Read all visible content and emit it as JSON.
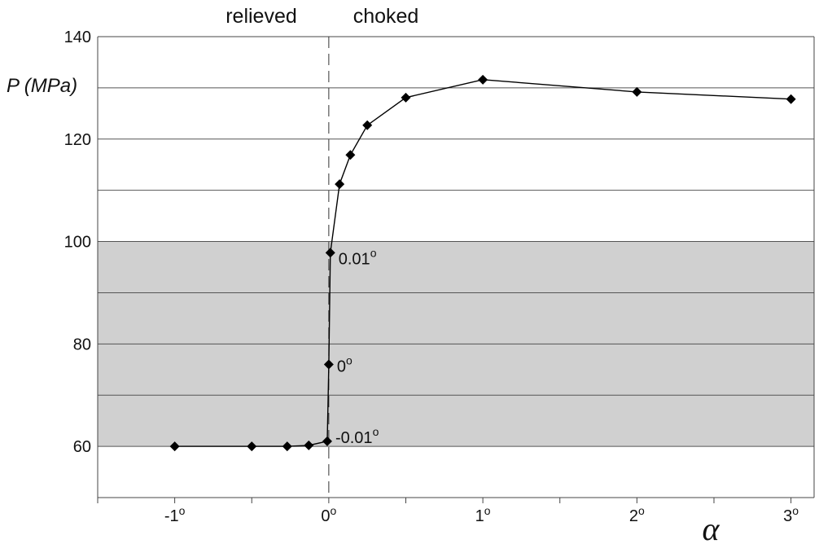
{
  "chart_data": {
    "type": "line",
    "xlabel": "α",
    "ylabel": "P (MPa)",
    "xlim": [
      -1.5,
      3.15
    ],
    "ylim": [
      50,
      140
    ],
    "x_ticks": [
      {
        "value": -1,
        "base": "-1",
        "sup": "o"
      },
      {
        "value": 0,
        "base": "0",
        "sup": "o"
      },
      {
        "value": 1,
        "base": "1",
        "sup": "o"
      },
      {
        "value": 2,
        "base": "2",
        "sup": "o"
      },
      {
        "value": 3,
        "base": "3",
        "sup": "o"
      }
    ],
    "x_minor_ticks": [
      -1.5,
      -1,
      -0.5,
      0,
      0.5,
      1,
      1.5,
      2,
      2.5,
      3
    ],
    "y_ticks": [
      60,
      80,
      100,
      120,
      140
    ],
    "y_gridlines": [
      60,
      70,
      80,
      90,
      100,
      110,
      120,
      130
    ],
    "shaded_band": {
      "from": 60,
      "to": 100,
      "color": "#d0d0d0"
    },
    "divider": {
      "x": 0,
      "style": "dashed"
    },
    "regions": [
      {
        "label": "relieved",
        "side": "left"
      },
      {
        "label": "choked",
        "side": "right"
      }
    ],
    "series": [
      {
        "points": [
          {
            "x": -1,
            "y": 60
          },
          {
            "x": -0.5,
            "y": 60
          },
          {
            "x": -0.27,
            "y": 60
          },
          {
            "x": -0.13,
            "y": 60.2
          },
          {
            "x": -0.01,
            "y": 61
          },
          {
            "x": 0,
            "y": 76
          },
          {
            "x": 0.01,
            "y": 97.8
          },
          {
            "x": 0.07,
            "y": 111.2
          },
          {
            "x": 0.14,
            "y": 116.9
          },
          {
            "x": 0.25,
            "y": 122.7
          },
          {
            "x": 0.5,
            "y": 128.1
          },
          {
            "x": 1,
            "y": 131.6
          },
          {
            "x": 2,
            "y": 129.2
          },
          {
            "x": 3,
            "y": 127.8
          }
        ]
      }
    ],
    "annotations": [
      {
        "text": "0.01",
        "sup": "o",
        "point_index": 6
      },
      {
        "text": "0",
        "sup": "o",
        "point_index": 5
      },
      {
        "text": "-0.01",
        "sup": "o",
        "point_index": 4
      }
    ],
    "grid": true,
    "legend": "none"
  },
  "colors": {
    "line": "#000000",
    "marker": "#000000",
    "band": "#d0d0d0",
    "grid": "#555555"
  }
}
